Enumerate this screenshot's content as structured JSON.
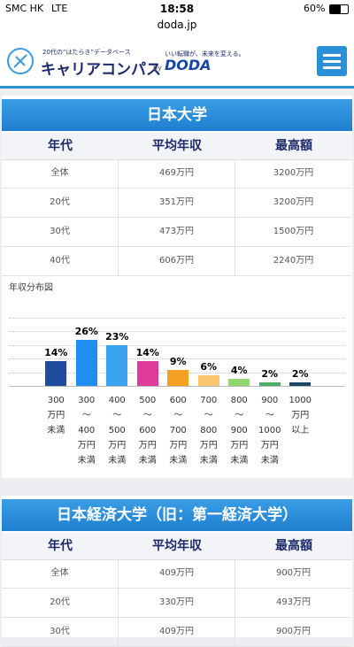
{
  "status_bar": {
    "carrier": "SMC HK",
    "network": "LTE",
    "time": "18:58",
    "battery": "60%"
  },
  "url": "doda.jp",
  "header": {
    "tagline": "20代の“はたらき”データベース",
    "brand": "キャリアコンパス",
    "by": "by",
    "slogan": "いい転職が、未来を変える。",
    "logo": "DODA"
  },
  "sections": [
    {
      "title": "日本大学",
      "table": {
        "columns": [
          "年代",
          "平均年収",
          "最高額"
        ],
        "rows": [
          [
            "全体",
            "469万円",
            "3200万円"
          ],
          [
            "20代",
            "351万円",
            "3200万円"
          ],
          [
            "30代",
            "473万円",
            "1500万円"
          ],
          [
            "40代",
            "606万円",
            "2240万円"
          ]
        ]
      },
      "chart_label": "年収分布図",
      "chart_data": {
        "type": "bar",
        "categories": [
          "300\n万円\n未満",
          "300\n〜\n400\n万円\n未満",
          "400\n〜\n500\n万円\n未満",
          "500\n〜\n600\n万円\n未満",
          "600\n〜\n700\n万円\n未満",
          "700\n〜\n800\n万円\n未満",
          "800\n〜\n900\n万円\n未満",
          "900\n〜\n1000\n万円\n未満",
          "1000\n万円\n以上"
        ],
        "values": [
          14,
          26,
          23,
          14,
          9,
          6,
          4,
          2,
          2
        ],
        "value_labels": [
          "14%",
          "26%",
          "23%",
          "14%",
          "9%",
          "6%",
          "4%",
          "2%",
          "2%"
        ],
        "colors": [
          "#1f4c9c",
          "#1e8ff0",
          "#3aa3f2",
          "#e03a9c",
          "#f5a021",
          "#fbc56c",
          "#8fd670",
          "#4cae6a",
          "#1c4766"
        ],
        "ylim": [
          0,
          50
        ]
      }
    },
    {
      "title": "日本経済大学（旧：第一経済大学）",
      "table": {
        "columns": [
          "年代",
          "平均年収",
          "最高額"
        ],
        "rows": [
          [
            "全体",
            "409万円",
            "900万円"
          ],
          [
            "20代",
            "330万円",
            "493万円"
          ],
          [
            "30代",
            "409万円",
            "900万円"
          ]
        ]
      }
    }
  ]
}
